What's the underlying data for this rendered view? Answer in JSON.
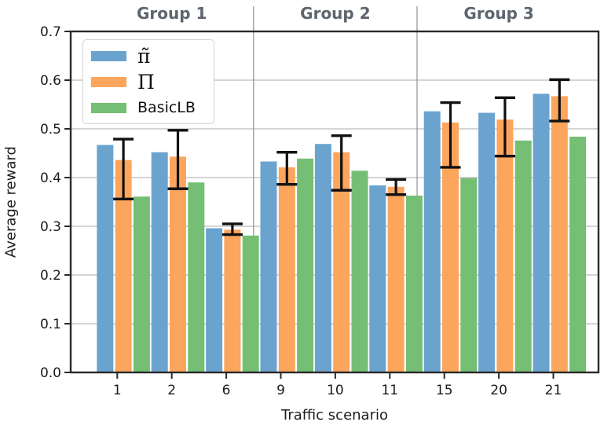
{
  "styles": {
    "group_title_color": "#5d656e",
    "grid_color": "#bcbcbc",
    "separator_color": "#8f8f8f",
    "spine_color": "#2a2a2a",
    "tick_text_color": "#1c1c1c",
    "error_bar_color": "#111111"
  },
  "chart_data": {
    "type": "bar",
    "title": "",
    "xlabel": "Traffic scenario",
    "ylabel": "Average reward",
    "ylim": [
      0,
      0.7
    ],
    "ytick_labels": [
      "0.0",
      "0.1",
      "0.2",
      "0.3",
      "0.4",
      "0.5",
      "0.6",
      "0.7"
    ],
    "grid": "horizontal",
    "legend_position": "upper left",
    "categories": [
      "1",
      "2",
      "6",
      "9",
      "10",
      "11",
      "15",
      "20",
      "21"
    ],
    "groups": [
      {
        "name": "Group 1",
        "categories": [
          "1",
          "2",
          "6"
        ]
      },
      {
        "name": "Group 2",
        "categories": [
          "9",
          "10",
          "11"
        ]
      },
      {
        "name": "Group 3",
        "categories": [
          "15",
          "20",
          "21"
        ]
      }
    ],
    "series": [
      {
        "name": "π̃",
        "math": true,
        "color": "#6BA3CF",
        "values": [
          0.467,
          0.452,
          0.296,
          0.433,
          0.469,
          0.384,
          0.536,
          0.533,
          0.572
        ]
      },
      {
        "name": "Π",
        "math": true,
        "color": "#FCA55C",
        "values": [
          0.436,
          0.443,
          0.293,
          0.421,
          0.452,
          0.381,
          0.513,
          0.519,
          0.567
        ],
        "error_low": [
          0.356,
          0.377,
          0.283,
          0.386,
          0.374,
          0.365,
          0.421,
          0.444,
          0.516
        ],
        "error_high": [
          0.479,
          0.497,
          0.305,
          0.452,
          0.486,
          0.396,
          0.554,
          0.564,
          0.601
        ]
      },
      {
        "name": "BasicLB",
        "math": false,
        "color": "#74BF74",
        "values": [
          0.361,
          0.39,
          0.281,
          0.439,
          0.414,
          0.363,
          0.399,
          0.476,
          0.484
        ]
      }
    ]
  }
}
